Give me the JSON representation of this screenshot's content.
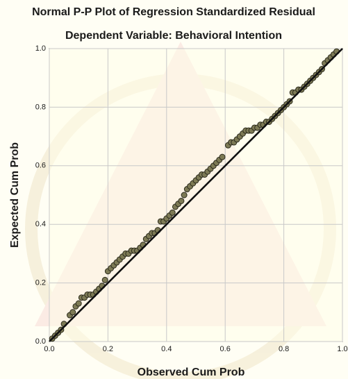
{
  "chart_data": {
    "type": "scatter",
    "title": "Normal P-P Plot of Regression Standardized Residual",
    "subtitle": "Dependent Variable: Behavioral Intention",
    "x_label": "Observed Cum Prob",
    "y_label": "Expected Cum Prob",
    "xlim": [
      0,
      1
    ],
    "ylim": [
      0,
      1
    ],
    "xticks": [
      {
        "value": 0,
        "label": "0.0"
      },
      0.2,
      0.4,
      0.6,
      0.8,
      {
        "value": 1,
        "label": "1.0"
      }
    ],
    "yticks": [
      {
        "value": 0,
        "label": "0.0"
      },
      0.2,
      0.4,
      0.6,
      0.8,
      {
        "value": 1,
        "label": "1.0"
      }
    ],
    "grid": true,
    "reference_line": true,
    "color": "#7d7a55",
    "line_color": "#111111",
    "x": [
      0.01,
      0.02,
      0.03,
      0.04,
      0.05,
      0.07,
      0.08,
      0.09,
      0.1,
      0.11,
      0.12,
      0.13,
      0.14,
      0.15,
      0.16,
      0.17,
      0.18,
      0.19,
      0.2,
      0.21,
      0.22,
      0.23,
      0.24,
      0.25,
      0.26,
      0.27,
      0.28,
      0.29,
      0.3,
      0.31,
      0.32,
      0.33,
      0.34,
      0.35,
      0.36,
      0.37,
      0.38,
      0.39,
      0.4,
      0.41,
      0.42,
      0.43,
      0.44,
      0.45,
      0.46,
      0.47,
      0.48,
      0.49,
      0.5,
      0.51,
      0.52,
      0.53,
      0.54,
      0.55,
      0.56,
      0.57,
      0.58,
      0.59,
      0.61,
      0.62,
      0.63,
      0.64,
      0.65,
      0.66,
      0.67,
      0.68,
      0.69,
      0.7,
      0.71,
      0.72,
      0.73,
      0.74,
      0.75,
      0.76,
      0.77,
      0.78,
      0.79,
      0.8,
      0.81,
      0.82,
      0.83,
      0.84,
      0.85,
      0.86,
      0.87,
      0.88,
      0.89,
      0.9,
      0.91,
      0.92,
      0.93,
      0.94,
      0.95,
      0.96,
      0.97,
      0.98
    ],
    "values": [
      0.01,
      0.02,
      0.03,
      0.04,
      0.06,
      0.09,
      0.1,
      0.12,
      0.13,
      0.15,
      0.15,
      0.16,
      0.16,
      0.16,
      0.17,
      0.18,
      0.19,
      0.21,
      0.24,
      0.25,
      0.26,
      0.27,
      0.28,
      0.29,
      0.3,
      0.3,
      0.31,
      0.31,
      0.31,
      0.32,
      0.33,
      0.35,
      0.36,
      0.37,
      0.37,
      0.38,
      0.41,
      0.41,
      0.42,
      0.43,
      0.44,
      0.46,
      0.47,
      0.48,
      0.5,
      0.52,
      0.53,
      0.54,
      0.55,
      0.56,
      0.57,
      0.57,
      0.58,
      0.59,
      0.6,
      0.61,
      0.62,
      0.63,
      0.67,
      0.68,
      0.68,
      0.69,
      0.7,
      0.71,
      0.72,
      0.72,
      0.72,
      0.73,
      0.73,
      0.74,
      0.74,
      0.75,
      0.75,
      0.76,
      0.77,
      0.78,
      0.79,
      0.8,
      0.81,
      0.82,
      0.85,
      0.85,
      0.86,
      0.86,
      0.87,
      0.88,
      0.89,
      0.9,
      0.91,
      0.92,
      0.93,
      0.95,
      0.96,
      0.97,
      0.98,
      0.99
    ]
  }
}
